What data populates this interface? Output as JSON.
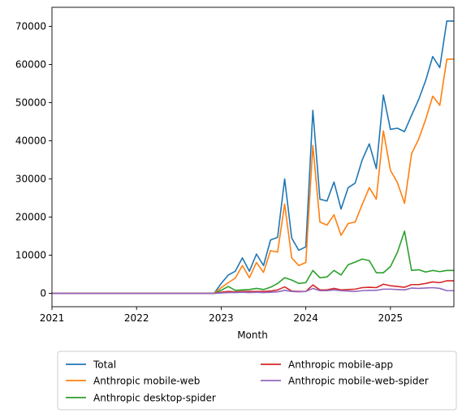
{
  "chart_data": {
    "type": "line",
    "xlabel": "Month",
    "ylabel": "",
    "x_tick_labels": [
      "2021",
      "2022",
      "2023",
      "2024",
      "2025"
    ],
    "y_tick_labels": [
      "0",
      "10000",
      "20000",
      "30000",
      "40000",
      "50000",
      "60000",
      "70000"
    ],
    "xlim": [
      "2021-01",
      "2025-10"
    ],
    "ylim": [
      -3500,
      75000
    ],
    "grid": false,
    "legend_placement": "below",
    "x": [
      "2021-01",
      "2021-02",
      "2021-03",
      "2021-04",
      "2021-05",
      "2021-06",
      "2021-07",
      "2021-08",
      "2021-09",
      "2021-10",
      "2021-11",
      "2021-12",
      "2022-01",
      "2022-02",
      "2022-03",
      "2022-04",
      "2022-05",
      "2022-06",
      "2022-07",
      "2022-08",
      "2022-09",
      "2022-10",
      "2022-11",
      "2022-12",
      "2023-01",
      "2023-02",
      "2023-03",
      "2023-04",
      "2023-05",
      "2023-06",
      "2023-07",
      "2023-08",
      "2023-09",
      "2023-10",
      "2023-11",
      "2023-12",
      "2024-01",
      "2024-02",
      "2024-03",
      "2024-04",
      "2024-05",
      "2024-06",
      "2024-07",
      "2024-08",
      "2024-09",
      "2024-10",
      "2024-11",
      "2024-12",
      "2025-01",
      "2025-02",
      "2025-03",
      "2025-04",
      "2025-05",
      "2025-06",
      "2025-07",
      "2025-08",
      "2025-09",
      "2025-10"
    ],
    "series": [
      {
        "name": "Total",
        "color": "#1f77b4",
        "values": [
          0,
          0,
          0,
          0,
          0,
          0,
          0,
          0,
          0,
          0,
          0,
          0,
          0,
          0,
          0,
          0,
          0,
          0,
          0,
          0,
          0,
          0,
          0,
          0,
          2600,
          4800,
          5800,
          9300,
          5800,
          10300,
          7300,
          14000,
          14700,
          30000,
          14500,
          11300,
          12200,
          48000,
          24700,
          24200,
          29200,
          22100,
          27700,
          28900,
          35000,
          39200,
          32700,
          52000,
          43000,
          43300,
          42400,
          46700,
          50800,
          55800,
          62100,
          59200,
          71400,
          71400
        ]
      },
      {
        "name": "Anthropic mobile-web",
        "color": "#ff7f0e",
        "values": [
          0,
          0,
          0,
          0,
          0,
          0,
          0,
          0,
          0,
          0,
          0,
          0,
          0,
          0,
          0,
          0,
          0,
          0,
          0,
          0,
          0,
          0,
          0,
          0,
          1500,
          2800,
          4000,
          7300,
          4100,
          8100,
          5500,
          11200,
          10800,
          23400,
          9300,
          7300,
          8100,
          38800,
          18700,
          17900,
          20600,
          15200,
          18300,
          18700,
          23300,
          27700,
          24700,
          42600,
          32300,
          29000,
          23600,
          36600,
          40400,
          45600,
          51700,
          49300,
          61400,
          61400
        ]
      },
      {
        "name": "Anthropic desktop-spider",
        "color": "#2ca02c",
        "values": [
          0,
          0,
          0,
          0,
          0,
          0,
          0,
          0,
          0,
          0,
          0,
          0,
          0,
          0,
          0,
          0,
          0,
          0,
          0,
          0,
          0,
          0,
          0,
          0,
          800,
          1800,
          800,
          900,
          1000,
          1300,
          1000,
          1600,
          2600,
          4100,
          3500,
          2600,
          2800,
          6000,
          4100,
          4300,
          6000,
          4800,
          7500,
          8200,
          9000,
          8600,
          5400,
          5400,
          7000,
          10800,
          16300,
          6000,
          6200,
          5600,
          6000,
          5700,
          6000,
          6000
        ]
      },
      {
        "name": "Anthropic mobile-app",
        "color": "#d62728",
        "values": [
          0,
          0,
          0,
          0,
          0,
          0,
          0,
          0,
          0,
          0,
          0,
          0,
          0,
          0,
          0,
          0,
          0,
          0,
          0,
          0,
          0,
          0,
          0,
          0,
          300,
          500,
          400,
          500,
          500,
          500,
          500,
          600,
          900,
          1700,
          600,
          500,
          500,
          2200,
          900,
          900,
          1300,
          900,
          1000,
          1100,
          1500,
          1600,
          1500,
          2400,
          2000,
          1800,
          1600,
          2300,
          2300,
          2600,
          3000,
          2800,
          3300,
          3300
        ]
      },
      {
        "name": "Anthropic mobile-web-spider",
        "color": "#9467bd",
        "values": [
          0,
          0,
          0,
          0,
          0,
          0,
          0,
          0,
          0,
          0,
          0,
          0,
          0,
          0,
          0,
          0,
          0,
          0,
          0,
          0,
          0,
          0,
          0,
          0,
          100,
          200,
          200,
          300,
          200,
          300,
          200,
          300,
          400,
          800,
          500,
          400,
          500,
          1300,
          700,
          700,
          900,
          700,
          600,
          500,
          700,
          800,
          800,
          1100,
          1100,
          1000,
          900,
          1400,
          1300,
          1400,
          1500,
          1300,
          700,
          700
        ]
      }
    ]
  }
}
